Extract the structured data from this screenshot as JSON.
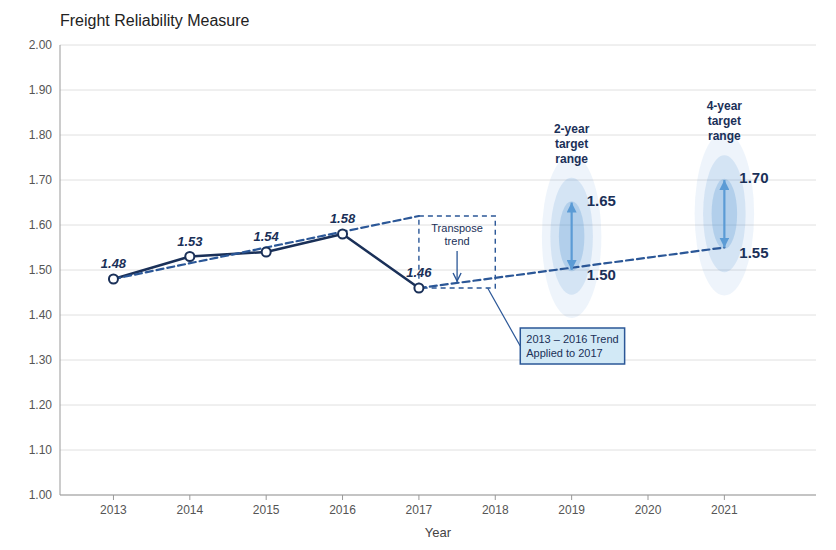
{
  "chart_data": {
    "type": "line",
    "title": "Freight Reliability Measure",
    "xlabel": "Year",
    "xlim": [
      2012.3,
      2022.2
    ],
    "ylim": [
      1.0,
      2.0
    ],
    "xticks": [
      2013,
      2014,
      2015,
      2016,
      2017,
      2018,
      2019,
      2020,
      2021
    ],
    "yticks": [
      {
        "value": 1.0,
        "label": "1.00"
      },
      {
        "value": 1.1,
        "label": "1.10"
      },
      {
        "value": 1.2,
        "label": "1.20"
      },
      {
        "value": 1.3,
        "label": "1.30"
      },
      {
        "value": 1.4,
        "label": "1.40"
      },
      {
        "value": 1.5,
        "label": "1.50"
      },
      {
        "value": 1.6,
        "label": "1.60"
      },
      {
        "value": 1.7,
        "label": "1.70"
      },
      {
        "value": 1.8,
        "label": "1.80"
      },
      {
        "value": 1.9,
        "label": "1.90"
      },
      {
        "value": 2.0,
        "label": "2.00"
      }
    ],
    "grid": true,
    "series": [
      {
        "x": [
          2013,
          2014,
          2015,
          2016,
          2017
        ],
        "values": [
          1.48,
          1.53,
          1.54,
          1.58,
          1.46
        ],
        "color": "#1a3058",
        "line_style": "solid",
        "marker": "circle",
        "data_labels": true
      },
      {
        "x": [
          2013,
          2017
        ],
        "values": [
          1.48,
          1.62
        ],
        "color": "#2b5797",
        "line_style": "dashed"
      },
      {
        "x": [
          2017,
          2021
        ],
        "values": [
          1.46,
          1.55
        ],
        "color": "#2b5797",
        "line_style": "dashed"
      }
    ],
    "box": {
      "x": [
        2017,
        2018
      ],
      "y": [
        1.46,
        1.62
      ],
      "color": "#2b5797",
      "line_style": "dashed",
      "label": "Transpose\ntrend",
      "callout": "2013 – 2016 Trend\nApplied to 2017"
    },
    "targets": [
      {
        "x": 2019,
        "values": [
          1.5,
          1.65
        ],
        "value_labels": [
          "1.50",
          "1.65"
        ],
        "label": "2-year\ntarget\nrange",
        "color": "#5b9bd5"
      },
      {
        "x": 2021,
        "values": [
          1.55,
          1.7
        ],
        "value_labels": [
          "1.55",
          "1.70"
        ],
        "label": "4-year\ntarget\nrange",
        "color": "#5b9bd5"
      }
    ]
  }
}
